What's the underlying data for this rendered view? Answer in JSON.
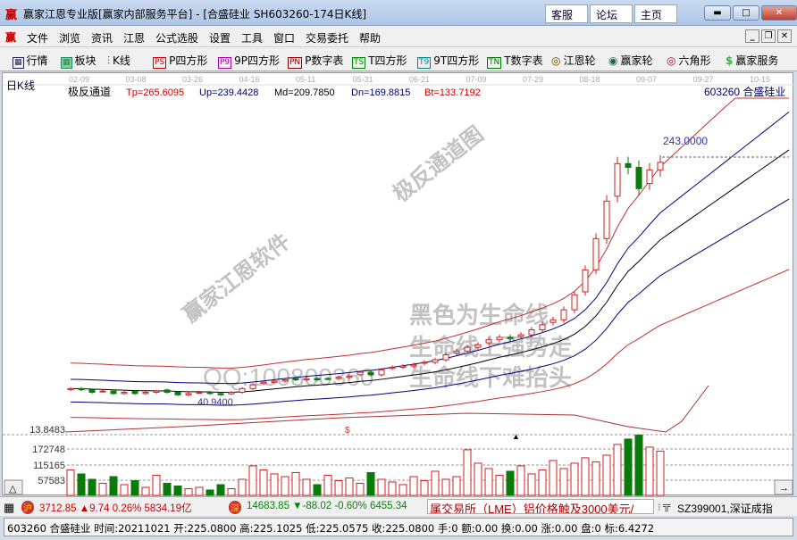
{
  "window": {
    "title": "赢家江恩专业版[赢家内部服务平台] - [合盛硅业  SH603260-174日K线]",
    "logo": "赢",
    "buttons": [
      "客服",
      "论坛",
      "主页"
    ]
  },
  "menu": {
    "items": [
      "文件",
      "浏览",
      "资讯",
      "江恩",
      "公式选股",
      "设置",
      "工具",
      "窗口",
      "交易委托",
      "帮助"
    ]
  },
  "toolbar": {
    "items": [
      {
        "icon": "table-icon",
        "label": "行情"
      },
      {
        "icon": "blocks-icon",
        "label": "板块"
      },
      {
        "icon": "candlestick-icon",
        "label": "K线"
      },
      {
        "icon": "PS",
        "label": "P四方形"
      },
      {
        "icon": "P9",
        "label": "9P四方形"
      },
      {
        "icon": "PN",
        "label": "P数字表"
      },
      {
        "icon": "TS",
        "label": "T四方形"
      },
      {
        "icon": "T9",
        "label": "9T四方形"
      },
      {
        "icon": "TN",
        "label": "T数字表"
      },
      {
        "icon": "target-icon",
        "label": "江恩轮"
      },
      {
        "icon": "big-wheel-icon",
        "label": "赢家轮"
      },
      {
        "icon": "hexagon-icon",
        "label": "六角形"
      },
      {
        "icon": "dollar-icon",
        "label": "赢家服务"
      }
    ]
  },
  "chart": {
    "period_label": "日K线",
    "dates": [
      "02-09",
      "03-08",
      "03-26",
      "04-16",
      "05-11",
      "05-31",
      "06-21",
      "07-09",
      "07-29",
      "08-18",
      "09-07",
      "09-27",
      "10-15"
    ],
    "indicator": {
      "name": "极反通道",
      "tp": "Tp=265.6095",
      "up": "Up=239.4428",
      "md": "Md=209.7850",
      "dn": "Dn=169.8815",
      "bt": "Bt=133.7192"
    },
    "stock": "603260  合盛硅业",
    "high_label": "243.0000",
    "low_label": "40.9400",
    "sub_label": "13.8483",
    "sub_marker": "$",
    "volume_ticks": [
      "172748",
      "115165",
      "57583"
    ],
    "watermarks": [
      "赢家江恩软件",
      "极反通道图",
      "黑色为生命线",
      "生命线上强势走",
      "QQ:100800360",
      "生命线下难抬头"
    ],
    "colors": {
      "up": "#d02020",
      "down": "#0a7a0a",
      "md": "#000000",
      "channel_blue": "#000080",
      "channel_red": "#c03030"
    }
  },
  "chart_data": {
    "type": "candlestick",
    "closes": [
      45,
      44,
      42,
      43,
      41,
      42,
      41,
      42,
      43,
      42,
      40,
      41,
      42,
      41,
      40,
      42,
      45,
      48,
      50,
      51,
      52,
      52,
      53,
      52,
      53,
      54,
      55,
      58,
      56,
      60,
      62,
      63,
      64,
      66,
      68,
      72,
      75,
      78,
      80,
      84,
      86,
      85,
      88,
      92,
      96,
      100,
      108,
      120,
      140,
      165,
      195,
      225,
      222,
      205,
      220,
      226
    ],
    "volumes": [
      95000,
      80000,
      60000,
      45000,
      70000,
      40000,
      55000,
      30000,
      75000,
      45000,
      35000,
      25000,
      30000,
      20000,
      40000,
      25000,
      60000,
      110000,
      95000,
      80000,
      70000,
      85000,
      60000,
      40000,
      75000,
      55000,
      65000,
      45000,
      85000,
      60000,
      50000,
      40000,
      70000,
      55000,
      90000,
      60000,
      70000,
      170000,
      120000,
      100000,
      75000,
      90000,
      110000,
      80000,
      95000,
      130000,
      100000,
      120000,
      140000,
      125000,
      150000,
      190000,
      210000,
      225000,
      180000,
      165000
    ]
  },
  "status": {
    "sh": "3712.85 ▲9.74 0.26% 5834.19亿",
    "sz": "14683.85 ▼-88.02 -0.60% 6455.34",
    "news": "属交易所（LME）铝价格触及3000美元/",
    "index": "SZ399001,深证成指",
    "sh_icon": "沪",
    "sz_icon": "深"
  },
  "info": "603260 合盛硅业 时间:20211021 开:225.0800 高:225.1025 低:225.0575 收:225.0800 手:0 额:0.00 换:0.00 涨:0.00 盘:0 标:6.4272"
}
